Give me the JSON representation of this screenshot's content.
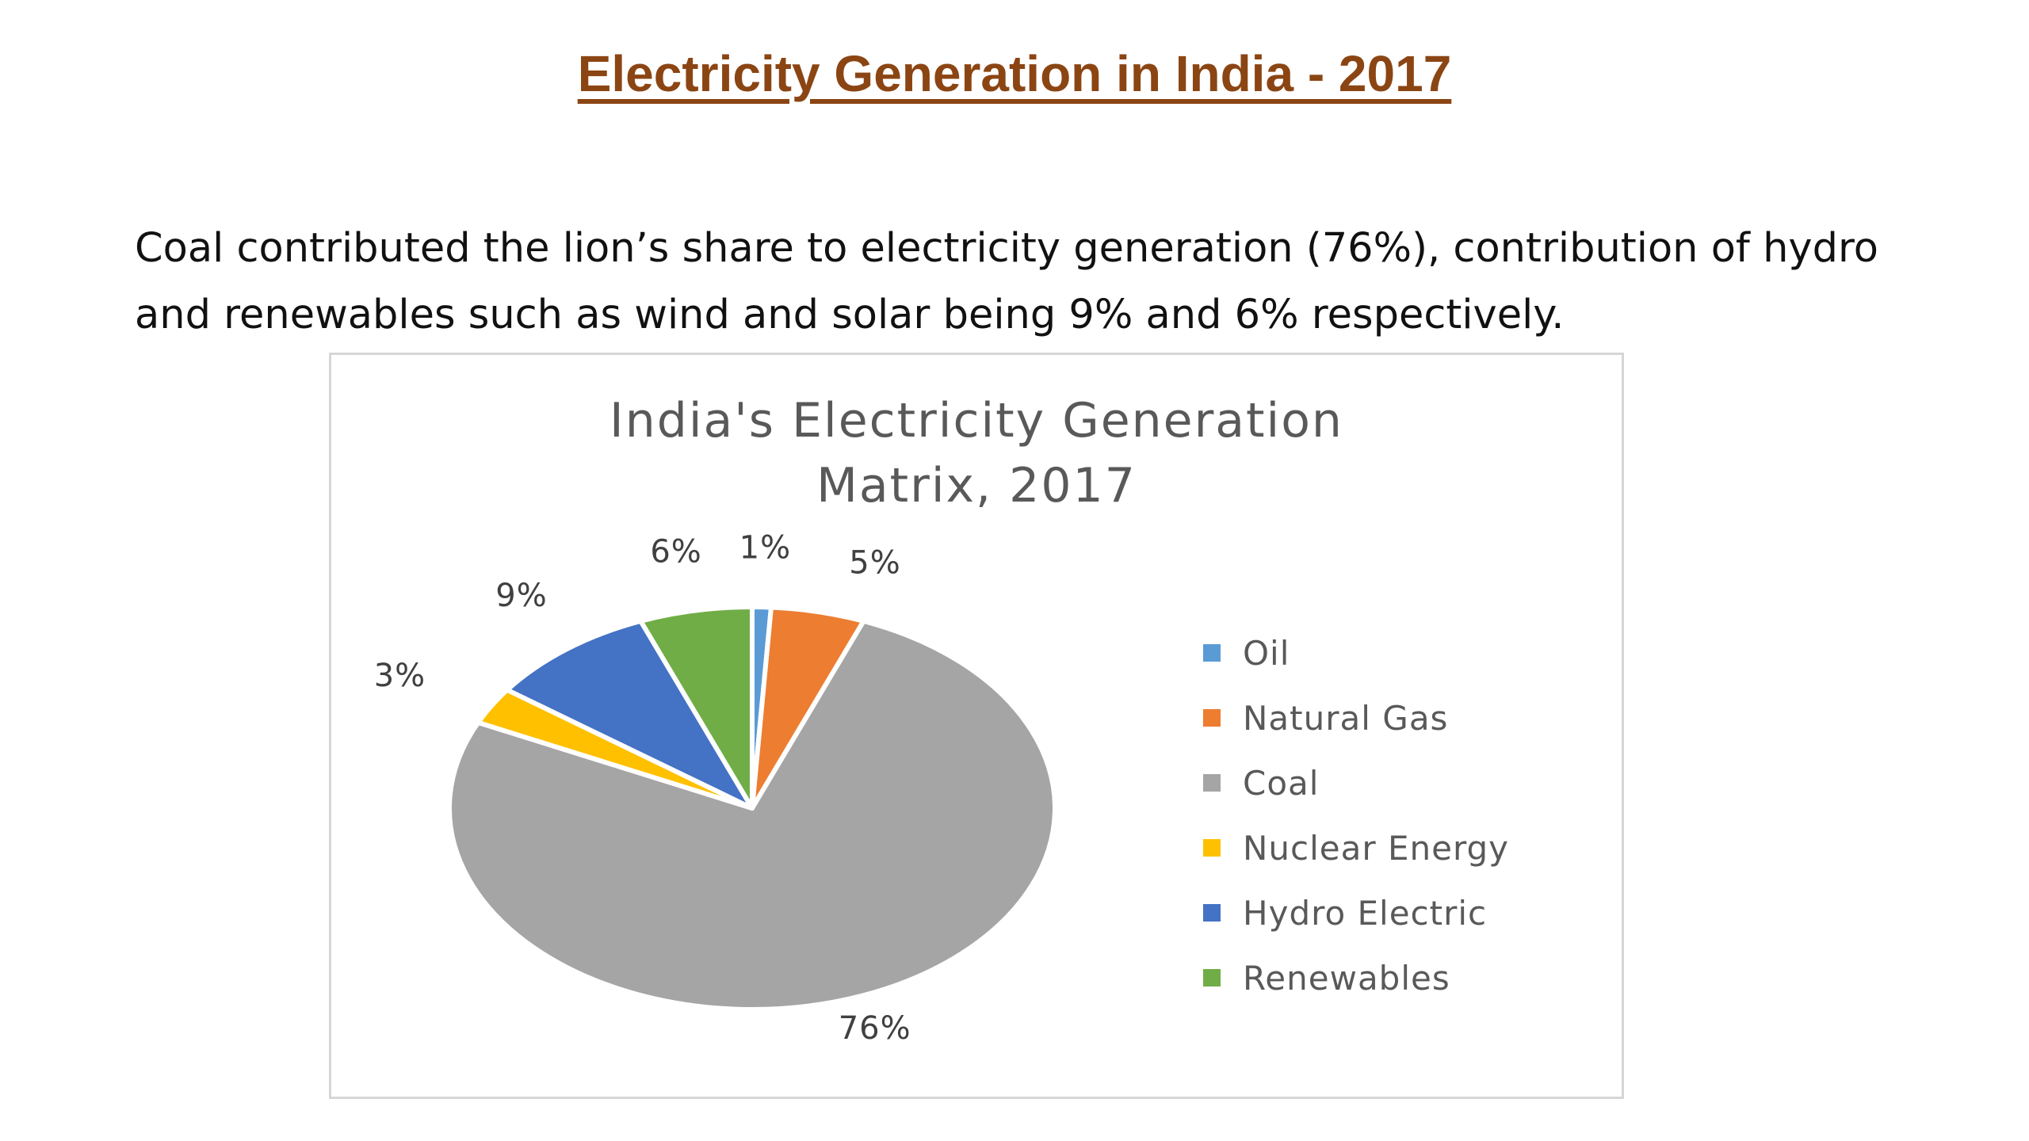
{
  "page": {
    "title": "Electricity Generation in India - 2017",
    "paragraph_line1": "Coal contributed the lion’s share to electricity generation (76%), contribution of hydro",
    "paragraph_line2": "and renewables such as wind and solar being 9% and 6% respectively."
  },
  "chart_data": {
    "type": "pie",
    "title_line1": "India's Electricity Generation",
    "title_line2": "Matrix, 2017",
    "legend_position": "right",
    "slices": [
      {
        "name": "Oil",
        "value": 1,
        "label": "1%",
        "color": "#5B9BD5"
      },
      {
        "name": "Natural Gas",
        "value": 5,
        "label": "5%",
        "color": "#ED7D31"
      },
      {
        "name": "Coal",
        "value": 76,
        "label": "76%",
        "color": "#A5A5A5"
      },
      {
        "name": "Nuclear Energy",
        "value": 3,
        "label": "3%",
        "color": "#FFC000"
      },
      {
        "name": "Hydro Electric",
        "value": 9,
        "label": "9%",
        "color": "#4472C4"
      },
      {
        "name": "Renewables",
        "value": 6,
        "label": "6%",
        "color": "#70AD47"
      }
    ]
  }
}
